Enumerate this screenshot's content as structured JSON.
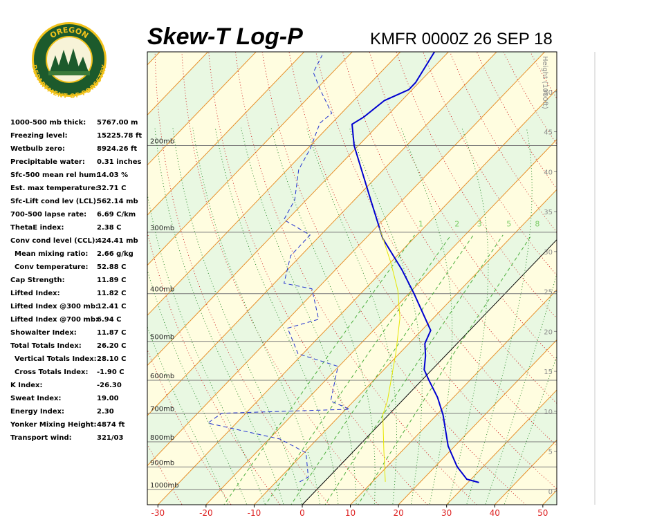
{
  "logo": {
    "top": "OREGON",
    "bottom": "DEPARTMENT OF FORESTRY"
  },
  "stats": [
    {
      "label": "1000-500 mb thick:",
      "value": "5767.00 m"
    },
    {
      "label": "Freezing level:",
      "value": "15225.78 ft"
    },
    {
      "label": "Wetbulb zero:",
      "value": "8924.26 ft"
    },
    {
      "label": "Precipitable water:",
      "value": "0.31 inches"
    },
    {
      "label": "Sfc-500 mean rel hum:",
      "value": "14.03 %"
    },
    {
      "label": "Est. max temperature:",
      "value": "32.71 C"
    },
    {
      "label": "Sfc-Lift cond lev (LCL):",
      "value": "562.14 mb"
    },
    {
      "label": "700-500 lapse rate:",
      "value": "6.69 C/km"
    },
    {
      "label": "ThetaE index:",
      "value": "2.38 C"
    },
    {
      "label": "Conv cond level (CCL):",
      "value": "424.41 mb"
    },
    {
      "label": "Mean mixing ratio:",
      "value": "2.66 g/kg"
    },
    {
      "label": "Conv temperature:",
      "value": "52.88 C"
    },
    {
      "label": "Cap Strength:",
      "value": "11.89 C"
    },
    {
      "label": "Lifted Index:",
      "value": "11.82 C"
    },
    {
      "label": "Lifted Index @300 mb:",
      "value": "12.41 C"
    },
    {
      "label": "Lifted Index @700 mb:",
      "value": "6.94 C"
    },
    {
      "label": "Showalter Index:",
      "value": "11.87 C"
    },
    {
      "label": "Total Totals Index:",
      "value": "26.20 C"
    },
    {
      "label": "Vertical Totals Index:",
      "value": "28.10 C"
    },
    {
      "label": "Cross Totals Index:",
      "value": "-1.90 C"
    },
    {
      "label": "K Index:",
      "value": "-26.30"
    },
    {
      "label": "Sweat Index:",
      "value": "19.00"
    },
    {
      "label": "Energy Index:",
      "value": "2.30"
    },
    {
      "label": "Yonker Mixing Height:",
      "value": "4874 ft"
    },
    {
      "label": "Transport wind:",
      "value": "321/03"
    }
  ],
  "chart_data": {
    "type": "skewt",
    "title": "Skew-T Log-P",
    "subtitle": "KMFR 0000Z 26 SEP 18",
    "xlim": [
      -32.2,
      52.9
    ],
    "xticks": [
      -30,
      -20,
      -10,
      0,
      10,
      20,
      30,
      40,
      50
    ],
    "ylim": [
      1074,
      129
    ],
    "log_y": true,
    "yticks": [
      {
        "value": 200,
        "label": "200mb"
      },
      {
        "value": 300,
        "label": "300mb"
      },
      {
        "value": 400,
        "label": "400mb"
      },
      {
        "value": 500,
        "label": "500mb"
      },
      {
        "value": 600,
        "label": "600mb"
      },
      {
        "value": 700,
        "label": "700mb"
      },
      {
        "value": 800,
        "label": "800mb"
      },
      {
        "value": 900,
        "label": "900mb"
      },
      {
        "value": 1000,
        "label": "1000mb"
      }
    ],
    "y2_label": "Height (1000ft)",
    "y2lim": [
      -1.7,
      55
    ],
    "y2ticks": [
      0,
      5,
      10,
      15,
      20,
      25,
      30,
      35,
      40,
      45,
      50
    ],
    "mixing_ratios": [
      1,
      2,
      3,
      5,
      8
    ],
    "series": [
      {
        "color": "#0000d0",
        "style": "solid",
        "pressure": [
          968,
          953,
          899,
          816,
          705,
          650,
          600,
          571,
          535,
          505,
          475,
          400,
          357,
          309,
          258,
          200,
          181,
          175,
          162,
          154,
          149,
          129
        ],
        "values": [
          32.3,
          29.1,
          24.6,
          18.6,
          11.3,
          6.7,
          1.5,
          -1.6,
          -4.1,
          -6.7,
          -8.1,
          -18.9,
          -26.3,
          -36.4,
          -46.6,
          -60.9,
          -65.6,
          -64.6,
          -63.6,
          -60.7,
          -60.7,
          -62.9
        ]
      },
      {
        "color": "#2030d0",
        "style": "dashed",
        "pressure": [
          965,
          943,
          842,
          790,
          733,
          700,
          687,
          661,
          562,
          530,
          470,
          451,
          391,
          381,
          335,
          304,
          283,
          258,
          224,
          203,
          180,
          172,
          154,
          142,
          131
        ],
        "values": [
          -5.1,
          -4.3,
          -9.6,
          -17.7,
          -35.9,
          -35.0,
          -9.2,
          -14.8,
          -20.2,
          -31.0,
          -38.3,
          -33.6,
          -41.1,
          -48.0,
          -52.1,
          -52.2,
          -60.7,
          -62.4,
          -67.6,
          -69.4,
          -72.5,
          -72.0,
          -79.1,
          -84.0,
          -85.6
        ]
      },
      {
        "color": "#e6e600",
        "style": "solid",
        "pressure": [
          965,
          829,
          705,
          661,
          527,
          448,
          394,
          346,
          294
        ],
        "values": [
          12.7,
          5.9,
          -1.2,
          -3.0,
          -10.9,
          -17.0,
          -22.9,
          -29.9,
          -39.2
        ]
      }
    ]
  }
}
